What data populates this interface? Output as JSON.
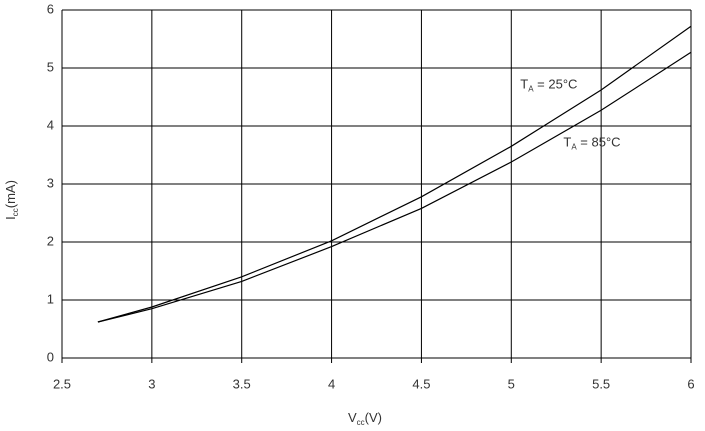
{
  "chart_data": {
    "type": "line",
    "xlabel": {
      "symbol": "V",
      "subscript": "cc",
      "unit": "(V)"
    },
    "ylabel": {
      "symbol": "I",
      "subscript": "cc",
      "unit": "(mA)"
    },
    "x": [
      2.7,
      3,
      3.5,
      4,
      4.5,
      5,
      5.5,
      6
    ],
    "series": [
      {
        "color": "#000000",
        "values": [
          0.62,
          0.88,
          1.4,
          2.02,
          2.78,
          3.65,
          4.62,
          5.72
        ]
      },
      {
        "color": "#000000",
        "values": [
          0.62,
          0.85,
          1.32,
          1.92,
          2.58,
          3.38,
          4.27,
          5.27
        ]
      }
    ],
    "annotations": [
      {
        "symbol": "T",
        "subscript": "A",
        "text": " = 25°C",
        "x": 5.05,
        "y": 4.7
      },
      {
        "symbol": "T",
        "subscript": "A",
        "text": " = 85°C",
        "x": 5.29,
        "y": 3.7
      }
    ],
    "xlim": [
      2.5,
      6
    ],
    "ylim": [
      0,
      6
    ],
    "xticks": [
      2.5,
      3,
      3.5,
      4,
      4.5,
      5,
      5.5,
      6
    ],
    "yticks": [
      0,
      1,
      2,
      3,
      4,
      5,
      6
    ],
    "grid": true
  }
}
